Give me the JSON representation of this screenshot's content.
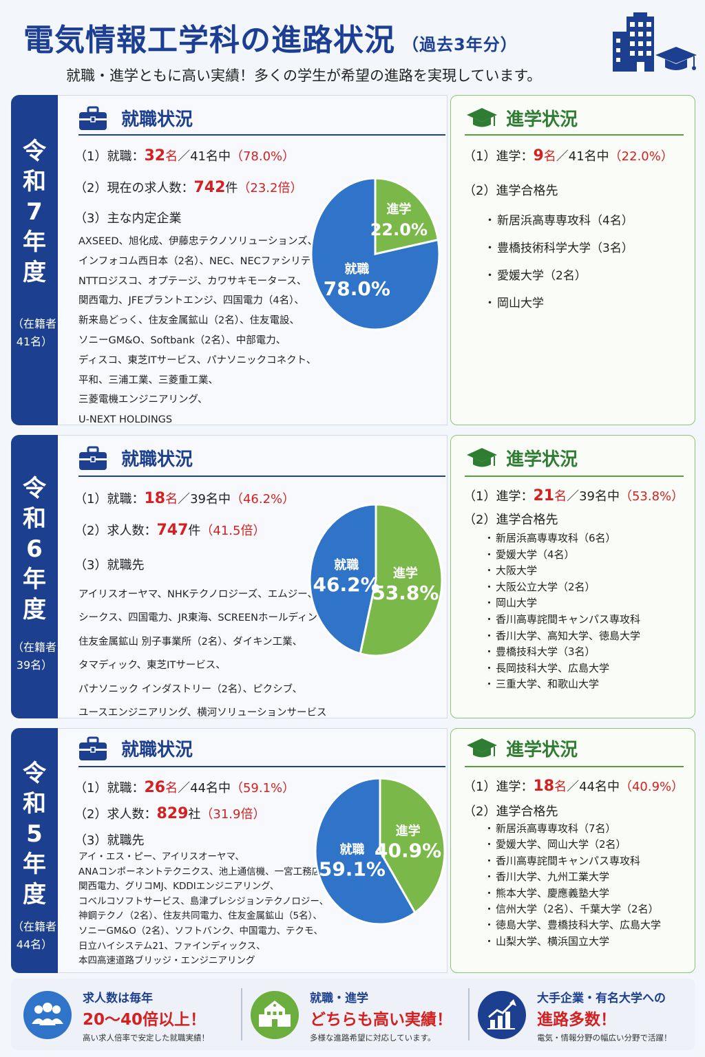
{
  "header": {
    "title": "電気情報工学科の進路状況",
    "title_sub": "（過去3年分）",
    "subtitle": "就職・進学ともに高い実績！多くの学生が希望の進路を実現しています。"
  },
  "icons": {
    "header": [
      "building-icon",
      "graduation-cap-icon"
    ],
    "employment_heading": "briefcase-icon",
    "advancement_heading": "graduation-cap-icon"
  },
  "colors": {
    "navy": "#1d3f8f",
    "blue_slice": "#2f74c9",
    "green_slice": "#7bb84a",
    "red": "#d42020",
    "green_heading": "#2e7d32"
  },
  "years": [
    {
      "name": "令和7年度",
      "enroll_line1": "（在籍者",
      "enroll_line2": "41名）",
      "emp": {
        "heading": "就職状況",
        "s1_pre": "（1）就職：",
        "s1_num": "32",
        "s1_unit": "名",
        "s1_mid": "／41名中",
        "s1_pct": "（78.0%）",
        "s2_pre": "（2）現在の求人数：",
        "s2_num": "742",
        "s2_unit": "件",
        "s2_ratio": "（23.2倍）",
        "s3": "（3）主な内定企業",
        "companies": [
          "AXSEED、旭化成、伊藤忠テクノソリューションズ、",
          "インフォコム西日本（2名）、NEC、NECファシリティーズ、",
          "NTTロジスコ、オプテージ、カワサキモータース、",
          "関西電力、JFEプラントエンジ、四国電力（4名）、",
          "新来島どっく、住友金属鉱山（2名）、住友電設、",
          "ソニーGM&O、Softbank（2名）、中部電力、",
          "ディスコ、東芝ITサービス、パナソニックコネクト、",
          "平和、三浦工業、三菱重工業、",
          "三菱電機エンジニアリング、",
          "U-NEXT HOLDINGS"
        ]
      },
      "adv": {
        "heading": "進学状況",
        "s1_pre": "（1）進学：",
        "s1_num": "9",
        "s1_unit": "名",
        "s1_mid": "／41名中",
        "s1_pct": "（22.0%）",
        "s2": "（2）進学合格先",
        "schools": [
          "新居浜高専専攻科（4名）",
          "豊橋技術科学大学（3名）",
          "愛媛大学（2名）",
          "岡山大学"
        ]
      }
    },
    {
      "name": "令和6年度",
      "enroll_line1": "（在籍者",
      "enroll_line2": "39名）",
      "emp": {
        "heading": "就職状況",
        "s1_pre": "（1）就職：",
        "s1_num": "18",
        "s1_unit": "名",
        "s1_mid": "／39名中",
        "s1_pct": "（46.2%）",
        "s2_pre": "（2）求人数：",
        "s2_num": "747",
        "s2_unit": "件",
        "s2_ratio": "（41.5倍）",
        "s3": "（3）就職先",
        "companies": [
          "アイリスオーヤマ、NHKテクノロジーズ、エムジー、",
          "シークス、四国電力、JR東海、SCREENホールディングス、",
          "住友金属鉱山 別子事業所（2名）、ダイキン工業、",
          "タマディック、東芝ITサービス、",
          "パナソニック インダストリー（2名）、ピクシブ、",
          "ユースエンジニアリング、横河ソリューションサービス"
        ]
      },
      "adv": {
        "heading": "進学状況",
        "s1_pre": "（1）進学：",
        "s1_num": "21",
        "s1_unit": "名",
        "s1_mid": "／39名中",
        "s1_pct": "（53.8%）",
        "s2": "（2）進学合格先",
        "schools": [
          "新居浜高専専攻科（6名）",
          "愛媛大学（4名）",
          "大阪大学",
          "大阪公立大学（2名）",
          "岡山大学",
          "香川高専詫間キャンパス専攻科",
          "香川大学、高知大学、徳島大学",
          "豊橋技科大学（3名）",
          "長岡技科大学、広島大学",
          "三重大学、和歌山大学"
        ]
      }
    },
    {
      "name": "令和5年度",
      "enroll_line1": "（在籍者",
      "enroll_line2": "44名）",
      "emp": {
        "heading": "就職状況",
        "s1_pre": "（1）就職：",
        "s1_num": "26",
        "s1_unit": "名",
        "s1_mid": "／44名中",
        "s1_pct": "（59.1%）",
        "s2_pre": "（2）求人数：",
        "s2_num": "829",
        "s2_unit": "社",
        "s2_ratio": "（31.9倍）",
        "s3": "（3）就職先",
        "companies": [
          "アイ・エス・ピー、アイリスオーヤマ、",
          "ANAコンポーネントテクニクス、池上通信機、一宮工務店、",
          "関西電力、グリコMJ、KDDIエンジニアリング、",
          "コベルコソフトサービス、島津プレシジョンテクノロジー、",
          "神鋼テクノ（2名）、住友共同電力、住友金属鉱山（5名）、",
          "ソニーGM&O（2名）、ソフトバンク、中国電力、テクモ、",
          "日立ハイシステム21、ファインディックス、",
          "本四高速道路ブリッジ・エンジニアリング"
        ]
      },
      "adv": {
        "heading": "進学状況",
        "s1_pre": "（1）進学：",
        "s1_num": "18",
        "s1_unit": "名",
        "s1_mid": "／44名中",
        "s1_pct": "（40.9%）",
        "s2": "（2）進学合格先",
        "schools": [
          "新居浜高専専攻科（7名）",
          "愛媛大学、岡山大学（2名）",
          "香川高専詫間キャンパス専攻科",
          "香川大学、九州工業大学",
          "熊本大学、慶應義塾大学",
          "信州大学（2名）、千葉大学（2名）",
          "徳島大学、豊橋技科大学、広島大学",
          "山梨大学、横浜国立大学"
        ]
      }
    }
  ],
  "chart_data": [
    {
      "type": "pie",
      "title": "",
      "categories": [
        "就職",
        "進学"
      ],
      "values": [
        78.0,
        22.0
      ],
      "labels": [
        "78.0%",
        "22.0%"
      ]
    },
    {
      "type": "pie",
      "title": "",
      "categories": [
        "就職",
        "進学"
      ],
      "values": [
        46.2,
        53.8
      ],
      "labels": [
        "46.2%",
        "53.8%"
      ]
    },
    {
      "type": "pie",
      "title": "",
      "categories": [
        "就職",
        "進学"
      ],
      "values": [
        59.1,
        40.9
      ],
      "labels": [
        "59.1%",
        "40.9%"
      ]
    }
  ],
  "features": [
    {
      "icon": "people-icon",
      "line1": "求人数は毎年",
      "line2": "20〜40倍以上！",
      "line3": "高い求人倍率で安定した就職実績！"
    },
    {
      "icon": "school-building-icon",
      "line1": "就職・進学",
      "line2": "どちらも高い実績！",
      "line3": "多様な進路希望に対応しています。"
    },
    {
      "icon": "growth-chart-icon",
      "line1": "大手企業・有名大学への",
      "line2": "進路多数！",
      "line3": "電気・情報分野の幅広い分野で活躍！"
    }
  ]
}
